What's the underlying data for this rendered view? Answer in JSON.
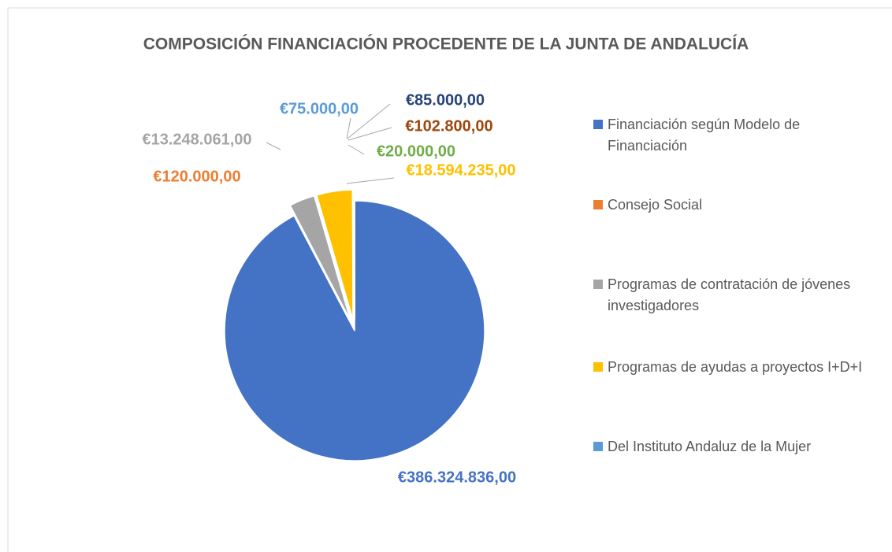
{
  "chart_data": {
    "type": "pie",
    "title": "COMPOSICIÓN FINANCIACIÓN PROCEDENTE DE LA JUNTA DE ANDALUCÍA",
    "categories": [
      "Financiación según Modelo de Financiación",
      "Consejo Social",
      "Programas de contratación de jóvenes investigadores",
      "Programas de ayudas a proyectos I+D+I",
      "Del Instituto Andaluz de la Mujer",
      null,
      null,
      null
    ],
    "values": [
      386324836,
      120000,
      13248061,
      18594235,
      75000,
      85000,
      102800,
      20000
    ],
    "value_labels": [
      "€386.324.836,00",
      "€120.000,00",
      "€13.248.061,00",
      "€18.594.235,00",
      "€75.000,00",
      "€85.000,00",
      "€102.800,00",
      "€20.000,00"
    ],
    "colors": [
      "#4472c4",
      "#ed7d31",
      "#a5a5a5",
      "#ffc000",
      "#5b9bd5",
      "#264478",
      "#9e480e",
      "#70ad47"
    ],
    "legend": "right"
  }
}
